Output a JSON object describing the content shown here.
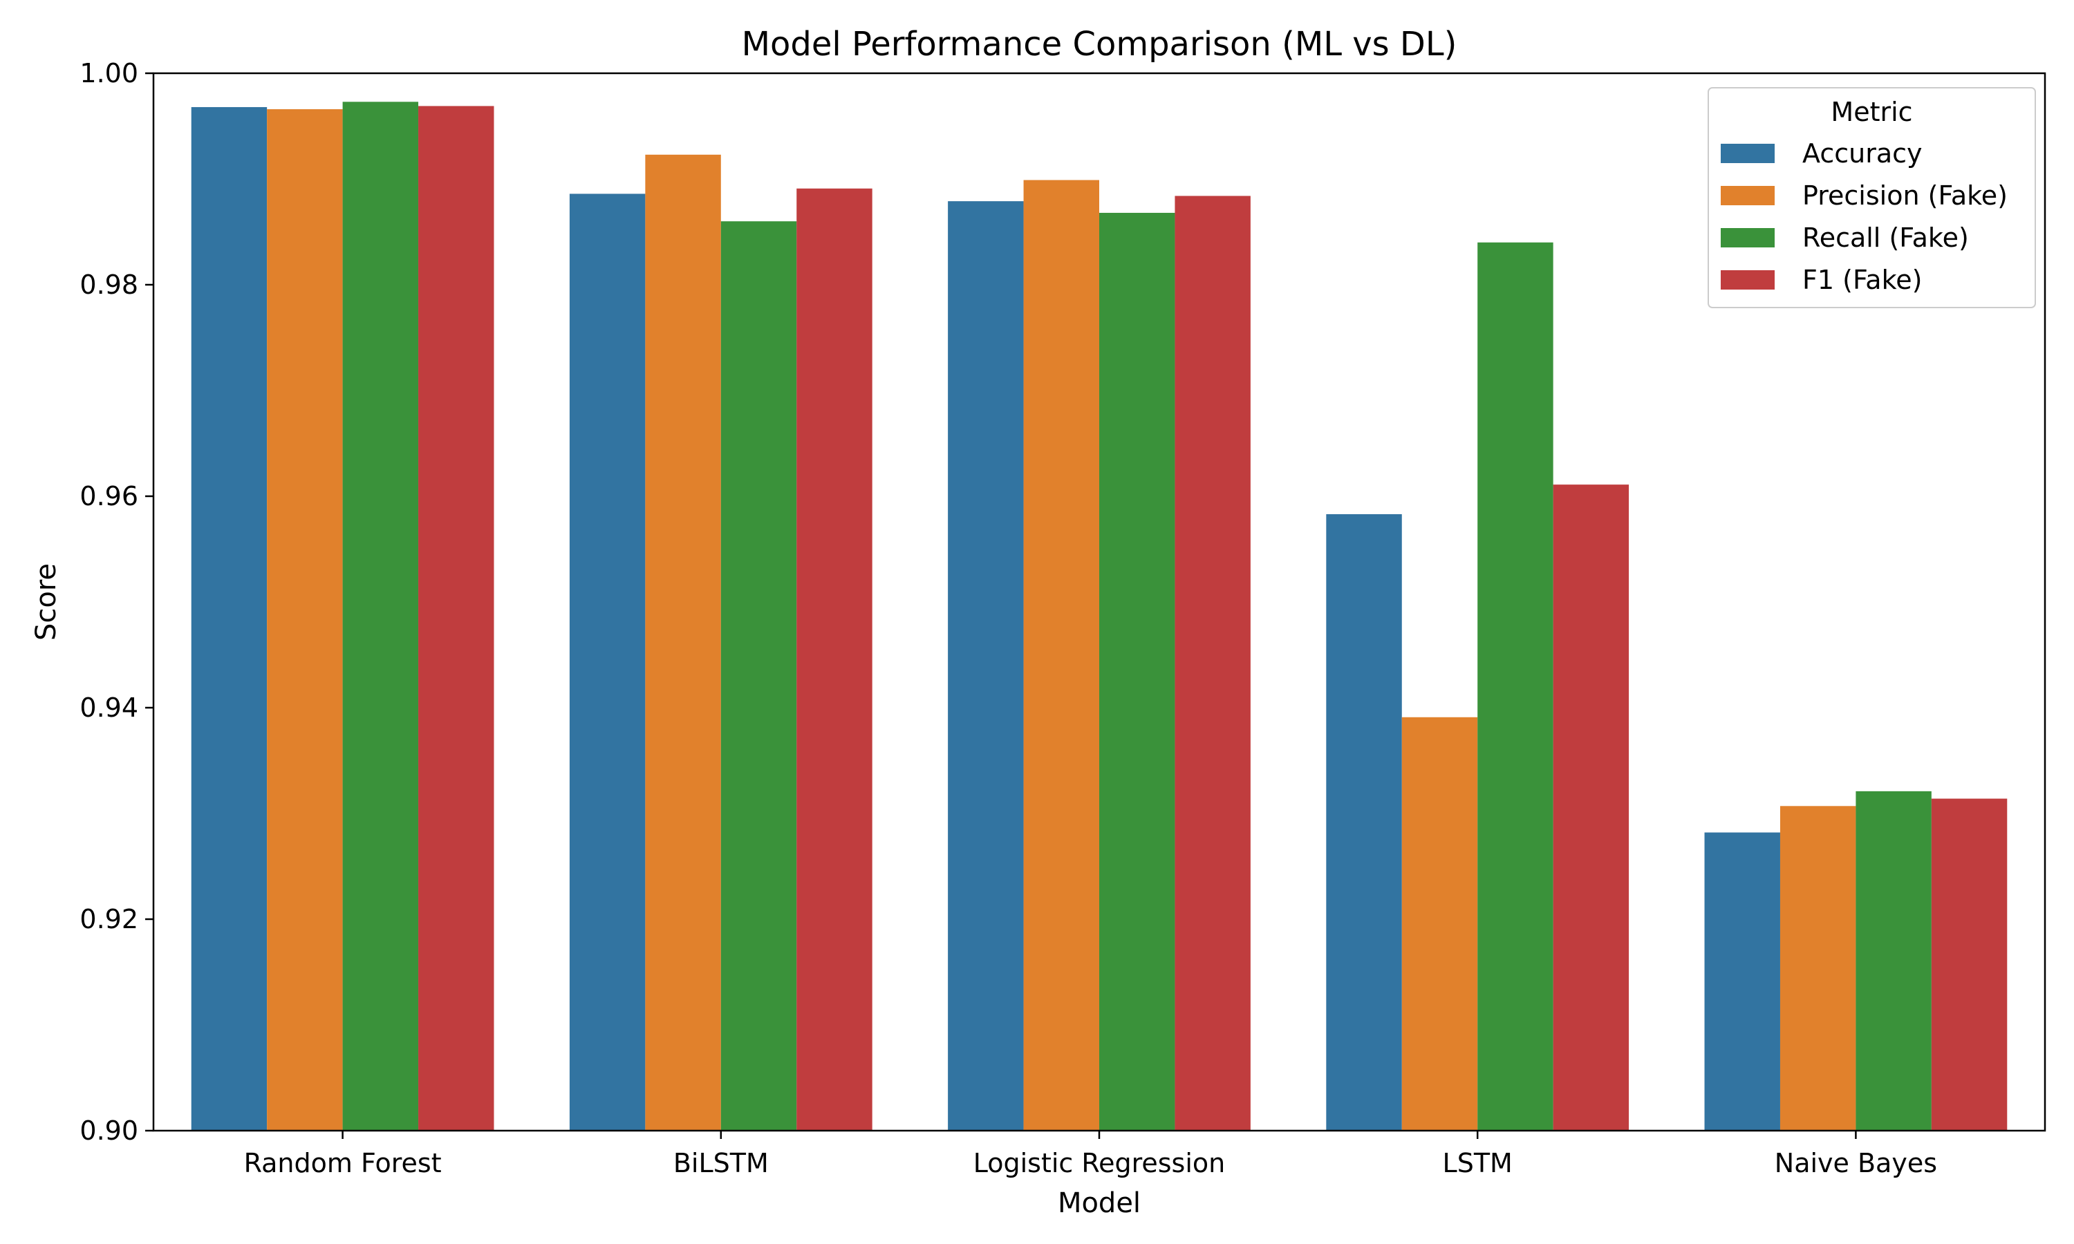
{
  "chart_data": {
    "type": "bar",
    "title": "Model Performance Comparison (ML vs DL)",
    "xlabel": "Model",
    "ylabel": "Score",
    "ylim": [
      0.9,
      1.0
    ],
    "yticks": [
      "0.90",
      "0.92",
      "0.94",
      "0.96",
      "0.98",
      "1.00"
    ],
    "ytick_values": [
      0.9,
      0.92,
      0.94,
      0.96,
      0.98,
      1.0
    ],
    "categories": [
      "Random Forest",
      "BiLSTM",
      "Logistic Regression",
      "LSTM",
      "Naive Bayes"
    ],
    "legend": {
      "title": "Metric",
      "placement": "top-right"
    },
    "grid": false,
    "series": [
      {
        "name": "Accuracy",
        "color": "#3274a1",
        "values": [
          0.9968,
          0.9886,
          0.9879,
          0.9583,
          0.9282
        ]
      },
      {
        "name": "Precision (Fake)",
        "color": "#e1812c",
        "values": [
          0.9966,
          0.9923,
          0.9899,
          0.9391,
          0.9307
        ]
      },
      {
        "name": "Recall (Fake)",
        "color": "#3a923a",
        "values": [
          0.9973,
          0.986,
          0.9868,
          0.984,
          0.9321
        ]
      },
      {
        "name": "F1 (Fake)",
        "color": "#c03d3e",
        "values": [
          0.9969,
          0.9891,
          0.9884,
          0.9611,
          0.9314
        ]
      }
    ]
  }
}
